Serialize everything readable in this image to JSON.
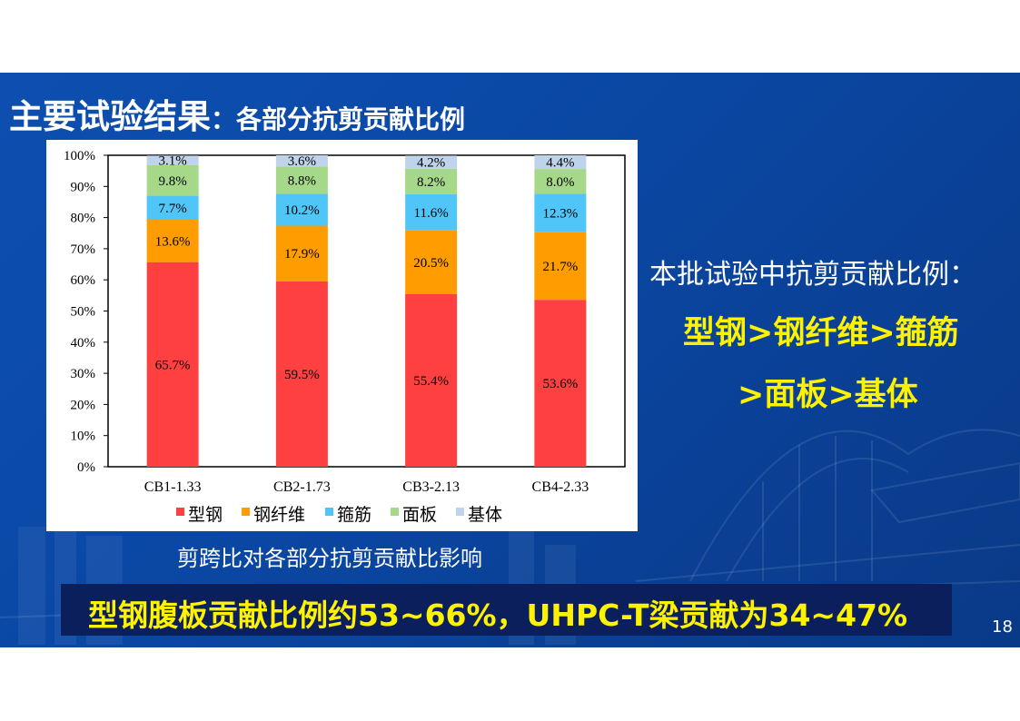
{
  "slide": {
    "title_main": "主要试验结果",
    "title_sub": "：各部分抗剪贡献比例",
    "chart_caption": "剪跨比对各部分抗剪贡献比影响",
    "side_heading": "本批试验中抗剪贡献比例：",
    "side_line1": "型钢>钢纤维>箍筋",
    "side_line2": ">面板>基体",
    "banner_text": "型钢腹板贡献比例约53~66%，UHPC-T梁贡献为34~47%",
    "page_number": "18",
    "colors": {
      "background": "#0b4ba6",
      "highlight": "#fff200",
      "banner_bg": "#0b1f5c"
    }
  },
  "chart_data": {
    "type": "bar",
    "stacked": true,
    "percent_axis": true,
    "categories": [
      "CB1-1.33",
      "CB2-1.73",
      "CB3-2.13",
      "CB4-2.33"
    ],
    "series": [
      {
        "name": "型钢",
        "color": "#ff4040",
        "values": [
          65.7,
          59.5,
          55.4,
          53.6
        ],
        "labels": [
          "65.7%",
          "59.5%",
          "55.4%",
          "53.6%"
        ]
      },
      {
        "name": "钢纤维",
        "color": "#ff9c00",
        "values": [
          13.6,
          17.9,
          20.5,
          21.7
        ],
        "labels": [
          "13.6%",
          "17.9%",
          "20.5%",
          "21.7%"
        ]
      },
      {
        "name": "箍筋",
        "color": "#4fc6f7",
        "values": [
          7.7,
          10.2,
          11.6,
          12.3
        ],
        "labels": [
          "7.7%",
          "10.2%",
          "11.6%",
          "12.3%"
        ]
      },
      {
        "name": "面板",
        "color": "#a6d88a",
        "values": [
          9.8,
          8.8,
          8.2,
          8.0
        ],
        "labels": [
          "9.8%",
          "8.8%",
          "8.2%",
          "8.0%"
        ]
      },
      {
        "name": "基体",
        "color": "#bfd3ea",
        "values": [
          3.1,
          3.6,
          4.2,
          4.4
        ],
        "labels": [
          "3.1%",
          "3.6%",
          "4.2%",
          "4.4%"
        ]
      }
    ],
    "y_ticks": [
      "0%",
      "10%",
      "20%",
      "30%",
      "40%",
      "50%",
      "60%",
      "70%",
      "80%",
      "90%",
      "100%"
    ],
    "ylim": [
      0,
      100
    ],
    "legend_position": "bottom",
    "grid": false
  }
}
